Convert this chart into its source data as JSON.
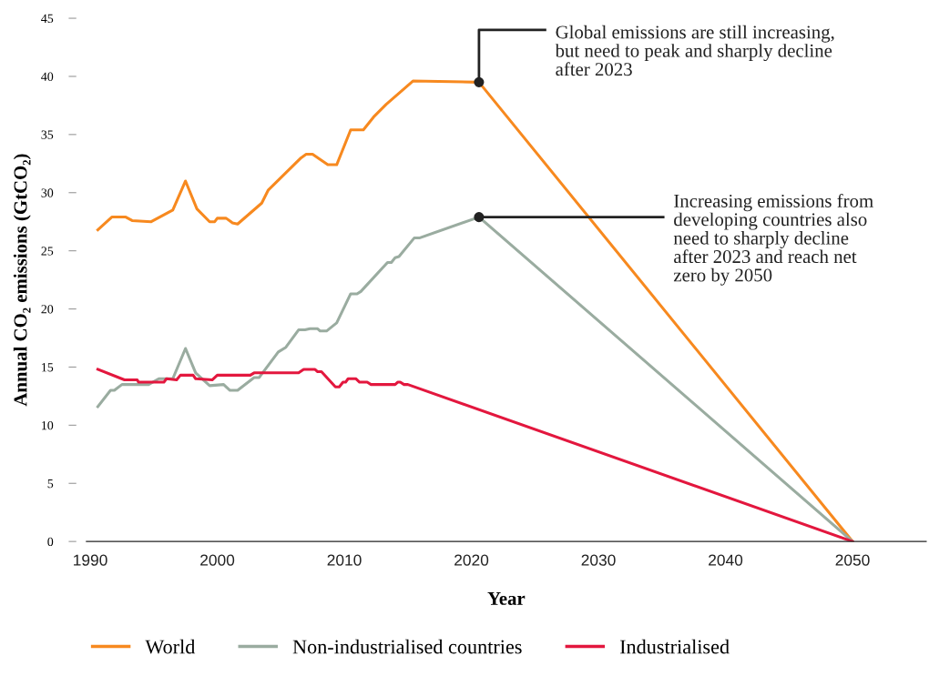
{
  "chart_data": {
    "type": "line",
    "xlabel": "Year",
    "ylabel": "Annual CO₂ emissions (GtCO₂)",
    "xlim": [
      1989.7,
      2055.8
    ],
    "xticks": [
      1990,
      2000,
      2010,
      2020,
      2030,
      2040,
      2050
    ],
    "ylim": [
      0,
      45
    ],
    "yticks": [
      0,
      5,
      10,
      15,
      20,
      25,
      30,
      35,
      40,
      45
    ],
    "grid": false,
    "legend": "bottom",
    "marker": "none",
    "line_style": "solid",
    "series": [
      {
        "name": "World",
        "color": "#f7891f",
        "x": [
          1990.6,
          1991.7,
          1992.8,
          1993.3,
          1994.8,
          1996.5,
          1997.5,
          1998.4,
          1999.4,
          1999.8,
          2000.0,
          2000.7,
          2001.2,
          2001.6,
          2003.5,
          2004.0,
          2006.6,
          2007.0,
          2007.5,
          2008.7,
          2009.4,
          2010.5,
          2011.5,
          2012.3,
          2013.3,
          2015.4,
          2020.6,
          2050
        ],
        "values": [
          26.8,
          27.9,
          27.9,
          27.6,
          27.5,
          28.5,
          31.0,
          28.6,
          27.5,
          27.5,
          27.8,
          27.8,
          27.4,
          27.3,
          29.1,
          30.2,
          33.0,
          33.3,
          33.3,
          32.4,
          32.4,
          35.4,
          35.4,
          36.5,
          37.6,
          39.6,
          39.5,
          0
        ]
      },
      {
        "name": "Non-industrialised countries",
        "color": "#9aaca0",
        "x": [
          1990.6,
          1991.6,
          1991.9,
          1992.5,
          1994.6,
          1995.4,
          1996.5,
          1997.5,
          1998.3,
          1999.4,
          2000.5,
          2001.0,
          2001.6,
          2002.9,
          2003.3,
          2004.8,
          2005.4,
          2006.4,
          2006.9,
          2007.3,
          2007.9,
          2008.1,
          2008.6,
          2009.4,
          2010.5,
          2011.0,
          2011.3,
          2013.4,
          2013.7,
          2014.0,
          2014.3,
          2015.5,
          2015.9,
          2020.6,
          2050
        ],
        "values": [
          11.6,
          13.0,
          13.0,
          13.5,
          13.5,
          14.0,
          14.0,
          16.6,
          14.5,
          13.4,
          13.5,
          13.0,
          13.0,
          14.1,
          14.1,
          16.3,
          16.7,
          18.2,
          18.2,
          18.3,
          18.3,
          18.1,
          18.1,
          18.8,
          21.3,
          21.3,
          21.5,
          24.0,
          24.0,
          24.4,
          24.5,
          26.1,
          26.1,
          27.9,
          0
        ]
      },
      {
        "name": "Industrialised",
        "color": "#e3173e",
        "x": [
          1990.6,
          1992.7,
          1993.7,
          1993.8,
          1995.8,
          1996.0,
          1996.8,
          1997.1,
          1998.1,
          1998.3,
          1999.6,
          2000.0,
          2002.6,
          2002.9,
          2006.4,
          2006.8,
          2007.7,
          2007.9,
          2008.2,
          2009.3,
          2009.6,
          2009.9,
          2010.1,
          2010.3,
          2010.9,
          2011.2,
          2011.8,
          2012.1,
          2014.0,
          2014.2,
          2014.4,
          2014.7,
          2015.0,
          2050
        ],
        "values": [
          14.8,
          13.9,
          13.9,
          13.7,
          13.7,
          14.0,
          13.9,
          14.3,
          14.3,
          14.0,
          13.9,
          14.3,
          14.3,
          14.5,
          14.5,
          14.8,
          14.8,
          14.6,
          14.6,
          13.3,
          13.3,
          13.7,
          13.7,
          14.0,
          14.0,
          13.7,
          13.7,
          13.5,
          13.5,
          13.7,
          13.7,
          13.5,
          13.5,
          0
        ]
      }
    ],
    "annotations": [
      {
        "text": "Global emissions are still increasing,\nbut need to peak and sharply decline\nafter 2023",
        "x": 2020.6,
        "y": 39.5
      },
      {
        "text": "Increasing emissions from\ndeveloping countries also\nneed to sharply decline\nafter 2023 and reach net\nzero by 2050",
        "x": 2020.6,
        "y": 27.9
      }
    ]
  }
}
